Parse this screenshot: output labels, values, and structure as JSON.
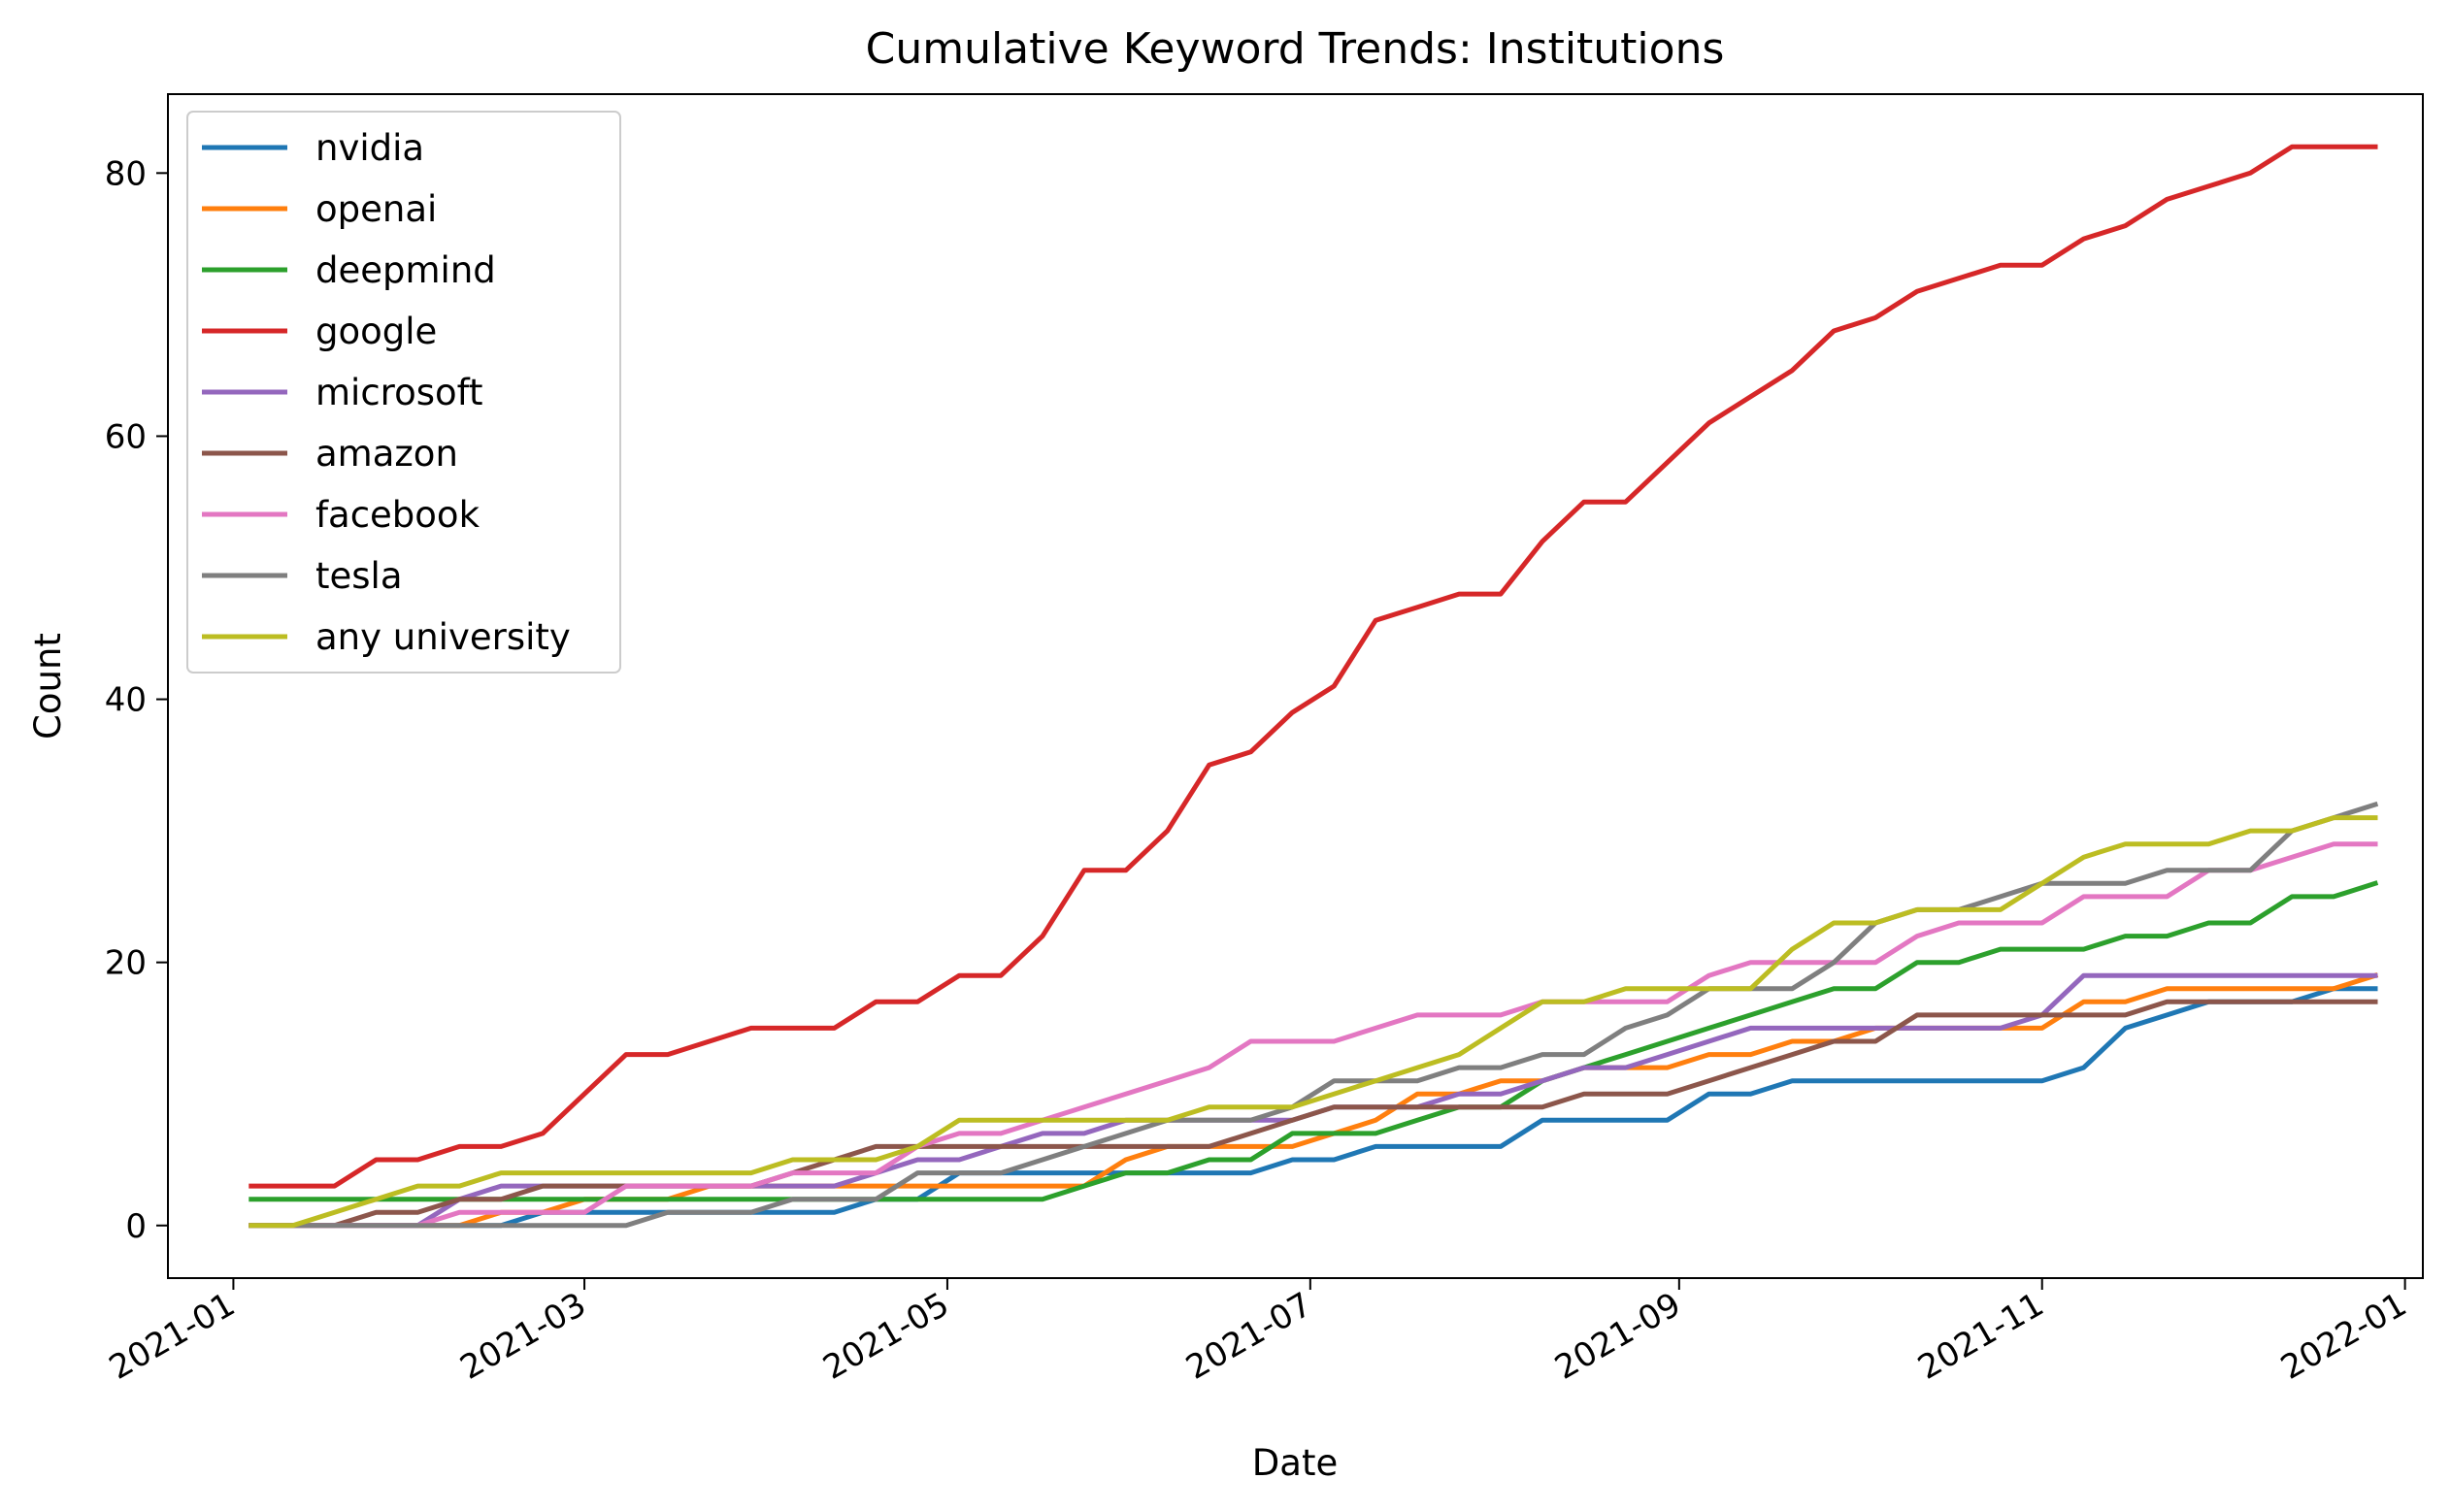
{
  "chart_data": {
    "type": "line",
    "title": "Cumulative Keyword Trends: Institutions",
    "xlabel": "Date",
    "ylabel": "Count",
    "xlim": [
      "2020-12-21",
      "2022-01-04"
    ],
    "ylim": [
      -4,
      86
    ],
    "x_ticks": [
      "2021-01",
      "2021-03",
      "2021-05",
      "2021-07",
      "2021-09",
      "2021-11",
      "2022-01"
    ],
    "y_ticks": [
      0,
      20,
      40,
      60,
      80
    ],
    "grid": false,
    "legend_position": "upper-left",
    "x": [
      "2021-01-04",
      "2021-01-11",
      "2021-01-18",
      "2021-01-25",
      "2021-02-01",
      "2021-02-08",
      "2021-02-15",
      "2021-02-22",
      "2021-03-01",
      "2021-03-08",
      "2021-03-15",
      "2021-03-22",
      "2021-03-29",
      "2021-04-05",
      "2021-04-12",
      "2021-04-19",
      "2021-04-26",
      "2021-05-03",
      "2021-05-10",
      "2021-05-17",
      "2021-05-24",
      "2021-05-31",
      "2021-06-07",
      "2021-06-14",
      "2021-06-21",
      "2021-06-28",
      "2021-07-05",
      "2021-07-12",
      "2021-07-19",
      "2021-07-26",
      "2021-08-02",
      "2021-08-09",
      "2021-08-16",
      "2021-08-23",
      "2021-08-30",
      "2021-09-06",
      "2021-09-13",
      "2021-09-20",
      "2021-09-27",
      "2021-10-04",
      "2021-10-11",
      "2021-10-18",
      "2021-10-25",
      "2021-11-01",
      "2021-11-08",
      "2021-11-15",
      "2021-11-22",
      "2021-11-29",
      "2021-12-06",
      "2021-12-13",
      "2021-12-20",
      "2021-12-27"
    ],
    "series": [
      {
        "name": "nvidia",
        "color": "#1f77b4",
        "values": [
          0,
          0,
          0,
          0,
          0,
          0,
          0,
          1,
          1,
          1,
          1,
          1,
          1,
          1,
          1,
          2,
          2,
          4,
          4,
          4,
          4,
          4,
          4,
          4,
          4,
          5,
          5,
          6,
          6,
          6,
          6,
          8,
          8,
          8,
          8,
          10,
          10,
          11,
          11,
          11,
          11,
          11,
          11,
          11,
          12,
          15,
          16,
          17,
          17,
          17,
          18,
          18
        ]
      },
      {
        "name": "openai",
        "color": "#ff7f0e",
        "values": [
          0,
          0,
          0,
          0,
          0,
          0,
          1,
          1,
          2,
          2,
          2,
          3,
          3,
          3,
          3,
          3,
          3,
          3,
          3,
          3,
          3,
          5,
          6,
          6,
          6,
          6,
          7,
          8,
          10,
          10,
          11,
          11,
          12,
          12,
          12,
          13,
          13,
          14,
          14,
          15,
          15,
          15,
          15,
          15,
          17,
          17,
          18,
          18,
          18,
          18,
          18,
          19
        ]
      },
      {
        "name": "deepmind",
        "color": "#2ca02c",
        "values": [
          2,
          2,
          2,
          2,
          2,
          2,
          2,
          2,
          2,
          2,
          2,
          2,
          2,
          2,
          2,
          2,
          2,
          2,
          2,
          2,
          3,
          4,
          4,
          5,
          5,
          7,
          7,
          7,
          8,
          9,
          9,
          11,
          12,
          13,
          14,
          15,
          16,
          17,
          18,
          18,
          20,
          20,
          21,
          21,
          21,
          22,
          22,
          23,
          23,
          25,
          25,
          26
        ]
      },
      {
        "name": "google",
        "color": "#d62728",
        "values": [
          3,
          3,
          3,
          5,
          5,
          6,
          6,
          7,
          10,
          13,
          13,
          14,
          15,
          15,
          15,
          17,
          17,
          19,
          19,
          22,
          27,
          27,
          30,
          35,
          36,
          39,
          41,
          46,
          47,
          48,
          48,
          52,
          55,
          55,
          58,
          61,
          63,
          65,
          68,
          69,
          71,
          72,
          73,
          73,
          75,
          76,
          78,
          79,
          80,
          82,
          82,
          82
        ]
      },
      {
        "name": "microsoft",
        "color": "#9467bd",
        "values": [
          0,
          0,
          0,
          0,
          0,
          2,
          3,
          3,
          3,
          3,
          3,
          3,
          3,
          3,
          3,
          4,
          5,
          5,
          6,
          7,
          7,
          8,
          8,
          8,
          8,
          8,
          9,
          9,
          9,
          10,
          10,
          11,
          12,
          12,
          13,
          14,
          15,
          15,
          15,
          15,
          15,
          15,
          15,
          16,
          19,
          19,
          19,
          19,
          19,
          19,
          19,
          19
        ]
      },
      {
        "name": "amazon",
        "color": "#8c564b",
        "values": [
          0,
          0,
          0,
          1,
          1,
          2,
          2,
          3,
          3,
          3,
          3,
          3,
          3,
          4,
          5,
          6,
          6,
          6,
          6,
          6,
          6,
          6,
          6,
          6,
          7,
          8,
          9,
          9,
          9,
          9,
          9,
          9,
          10,
          10,
          10,
          11,
          12,
          13,
          14,
          14,
          16,
          16,
          16,
          16,
          16,
          16,
          17,
          17,
          17,
          17,
          17,
          17
        ]
      },
      {
        "name": "facebook",
        "color": "#e377c2",
        "values": [
          0,
          0,
          0,
          0,
          0,
          1,
          1,
          1,
          1,
          3,
          3,
          3,
          3,
          4,
          4,
          4,
          6,
          7,
          7,
          8,
          9,
          10,
          11,
          12,
          14,
          14,
          14,
          15,
          16,
          16,
          16,
          17,
          17,
          17,
          17,
          19,
          20,
          20,
          20,
          20,
          22,
          23,
          23,
          23,
          25,
          25,
          25,
          27,
          27,
          28,
          29,
          29
        ]
      },
      {
        "name": "tesla",
        "color": "#7f7f7f",
        "values": [
          0,
          0,
          0,
          0,
          0,
          0,
          0,
          0,
          0,
          0,
          1,
          1,
          1,
          2,
          2,
          2,
          4,
          4,
          4,
          5,
          6,
          7,
          8,
          8,
          8,
          9,
          11,
          11,
          11,
          12,
          12,
          13,
          13,
          15,
          16,
          18,
          18,
          18,
          20,
          23,
          24,
          24,
          25,
          26,
          26,
          26,
          27,
          27,
          27,
          30,
          31,
          32
        ]
      },
      {
        "name": "any university",
        "color": "#bcbd22",
        "values": [
          0,
          0,
          1,
          2,
          3,
          3,
          4,
          4,
          4,
          4,
          4,
          4,
          4,
          5,
          5,
          5,
          6,
          8,
          8,
          8,
          8,
          8,
          8,
          9,
          9,
          9,
          10,
          11,
          12,
          13,
          15,
          17,
          17,
          18,
          18,
          18,
          18,
          21,
          23,
          23,
          24,
          24,
          24,
          26,
          28,
          29,
          29,
          29,
          30,
          30,
          31,
          31
        ]
      }
    ]
  }
}
